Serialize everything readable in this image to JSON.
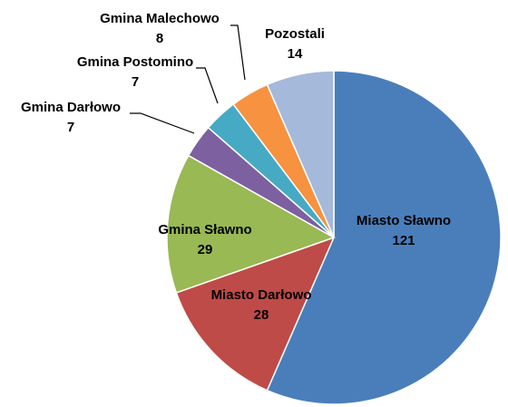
{
  "chart_data": {
    "type": "pie",
    "title": "",
    "legend": "none",
    "start": "top, clockwise",
    "slices": [
      {
        "name": "Miasto Sławno",
        "value": 121,
        "color": "#4A7EBB",
        "label_color": "#000000"
      },
      {
        "name": "Miasto Darłowo",
        "value": 28,
        "color": "#BE4B48",
        "label_color": "#000000"
      },
      {
        "name": "Gmina Sławno",
        "value": 29,
        "color": "#98B954",
        "label_color": "#000000"
      },
      {
        "name": "Gmina Darłowo",
        "value": 7,
        "color": "#7D60A0",
        "label_color": "#000000"
      },
      {
        "name": "Gmina Postomino",
        "value": 7,
        "color": "#46AAC5",
        "label_color": "#000000"
      },
      {
        "name": "Gmina Malechowo",
        "value": 8,
        "color": "#F69240",
        "label_color": "#000000"
      },
      {
        "name": "Pozostali",
        "value": 14,
        "color": "#A5B9DA",
        "label_color": "#000000"
      }
    ]
  }
}
